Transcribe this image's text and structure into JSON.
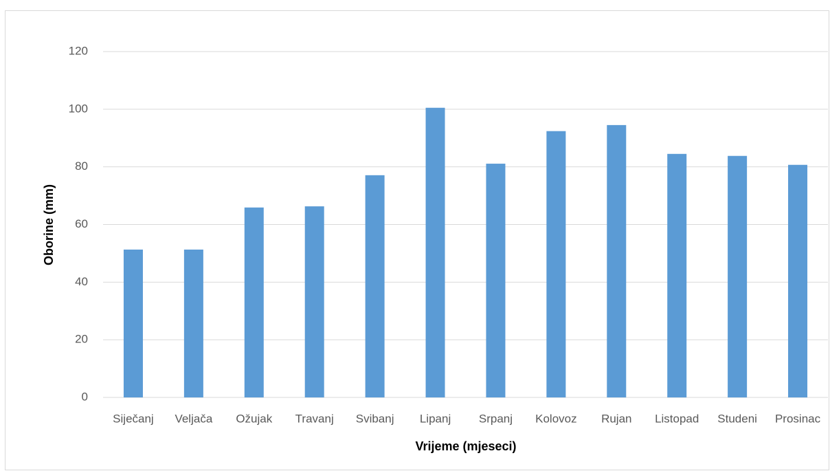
{
  "chart_data": {
    "type": "bar",
    "xlabel": "Vrijeme (mjeseci)",
    "ylabel": "Oborine (mm)",
    "categories": [
      "Siječanj",
      "Veljača",
      "Ožujak",
      "Travanj",
      "Svibanj",
      "Lipanj",
      "Srpanj",
      "Kolovoz",
      "Rujan",
      "Listopad",
      "Studeni",
      "Prosinac"
    ],
    "values": [
      51.3,
      51.3,
      65.9,
      66.3,
      77.1,
      100.5,
      81.1,
      92.4,
      94.5,
      84.5,
      83.8,
      80.7
    ],
    "color": "#5b9bd5",
    "ylim": [
      0,
      120
    ],
    "yticks": [
      0,
      20,
      40,
      60,
      80,
      100,
      120
    ],
    "grid": true
  }
}
